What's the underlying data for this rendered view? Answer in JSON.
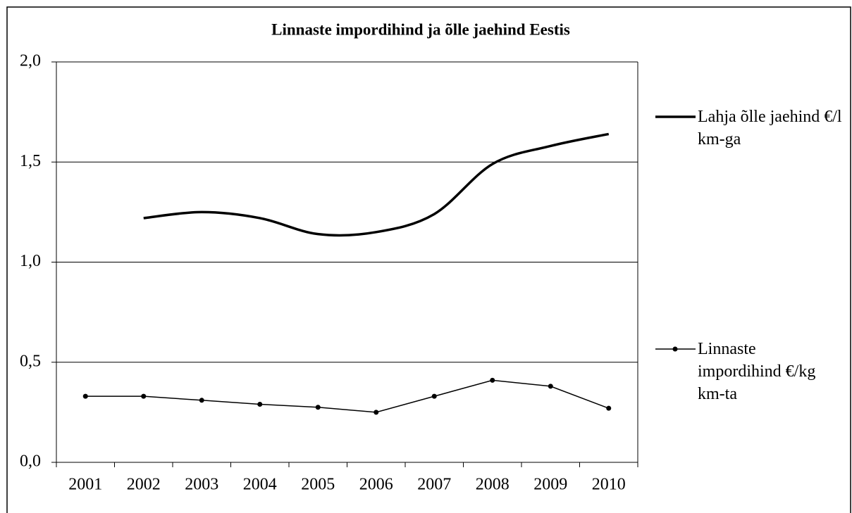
{
  "chart_data": {
    "type": "line",
    "title": "Linnaste impordihind ja õlle jaehind Eestis",
    "categories": [
      "2001",
      "2002",
      "2003",
      "2004",
      "2005",
      "2006",
      "2007",
      "2008",
      "2009",
      "2010"
    ],
    "series": [
      {
        "name": "Lahja õlle jaehind €/l km-ga",
        "color": "#000000",
        "marker": "none",
        "smooth": true,
        "values": [
          null,
          1.22,
          1.25,
          1.22,
          1.14,
          1.15,
          1.24,
          1.49,
          1.58,
          1.64
        ]
      },
      {
        "name": "Linnaste impordihind €/kg km-ta",
        "color": "#000000",
        "marker": "circle",
        "smooth": false,
        "values": [
          0.33,
          0.33,
          0.31,
          0.29,
          0.275,
          0.25,
          0.33,
          0.41,
          0.38,
          0.27
        ]
      }
    ],
    "ylim": [
      0,
      2
    ],
    "yticks": [
      {
        "value": 0,
        "label": "0,0"
      },
      {
        "value": 0.5,
        "label": "0,5"
      },
      {
        "value": 1,
        "label": "1,0"
      },
      {
        "value": 1.5,
        "label": "1,5"
      },
      {
        "value": 2,
        "label": "2,0"
      }
    ],
    "grid": true,
    "legend": "right"
  }
}
